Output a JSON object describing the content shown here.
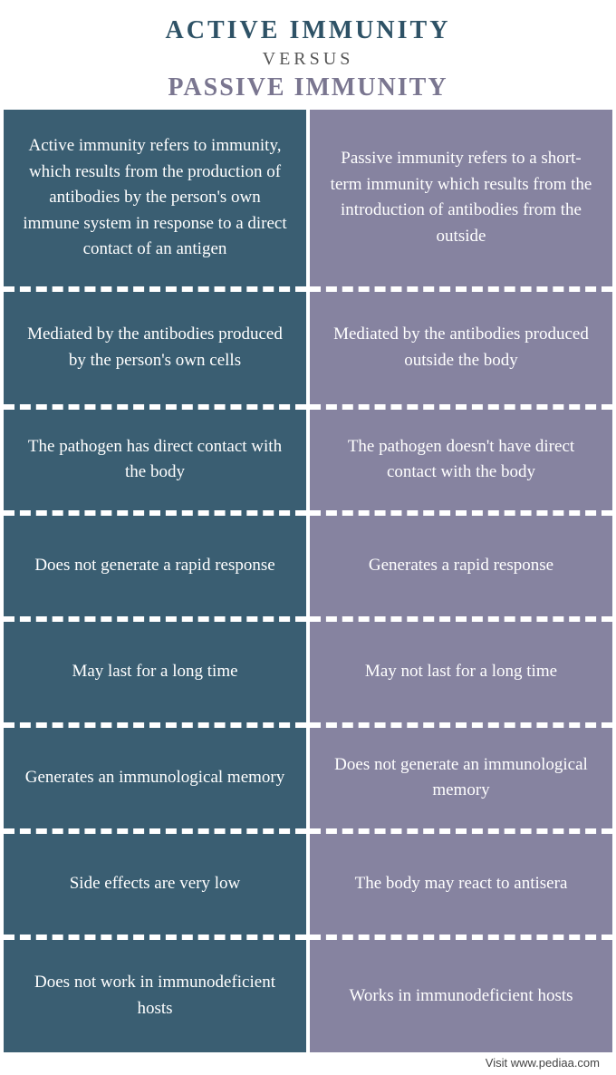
{
  "header": {
    "title1": "ACTIVE  IMMUNITY",
    "versus": "VERSUS",
    "title2": "PASSIVE IMMUNITY",
    "title1_color": "#2e5266",
    "title2_color": "#7a7690"
  },
  "columns": {
    "left": {
      "bg_color": "#3a5e72",
      "rows": [
        "Active immunity refers to immunity, which results from the production of antibodies by the person's own immune system in response to a direct contact of an antigen",
        "Mediated by the antibodies produced by the person's own cells",
        "The pathogen has direct contact with the body",
        "Does not generate a rapid response",
        "May last for a long time",
        "Generates an immunological memory",
        "Side effects are very low",
        "Does not work in immunodeficient hosts"
      ]
    },
    "right": {
      "bg_color": "#8683a0",
      "rows": [
        "Passive immunity refers to a short-term immunity which results from the introduction of antibodies from the outside",
        "Mediated by the antibodies produced outside the body",
        "The pathogen doesn't have direct contact with the body",
        "Generates a rapid response",
        "May not last for a long time",
        "Does not generate an immunological memory",
        "The body may react to antisera",
        "Works in immunodeficient hosts"
      ]
    }
  },
  "footer": {
    "text": "Visit www.pediaa.com"
  },
  "style": {
    "divider_color": "#ffffff",
    "text_color": "#ffffff",
    "cell_fontsize": 19,
    "title_fontsize": 28,
    "font_family": "Georgia, serif"
  }
}
